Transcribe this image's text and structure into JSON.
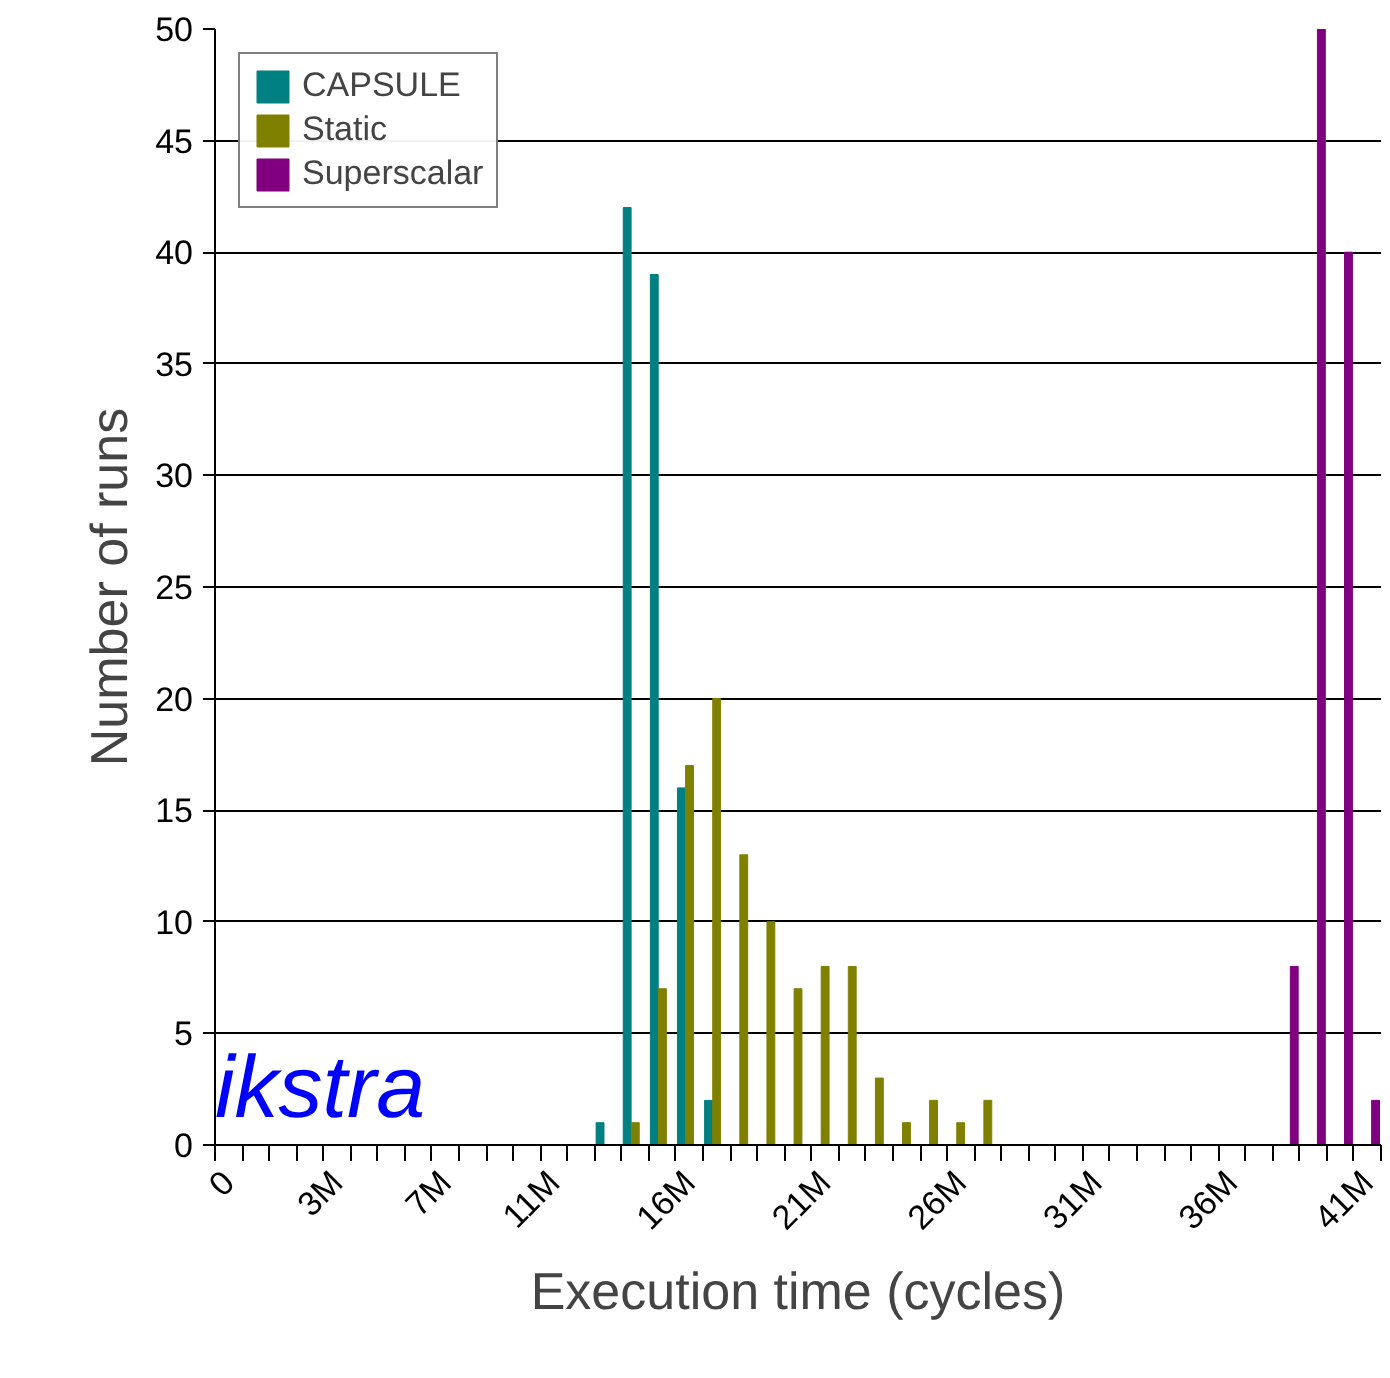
{
  "chart_data": {
    "type": "bar",
    "xlabel": "Execution time (cycles)",
    "ylabel": "Number of runs",
    "categories": [
      "0",
      null,
      null,
      null,
      "3M",
      null,
      null,
      null,
      "7M",
      null,
      null,
      null,
      "11M",
      null,
      null,
      null,
      null,
      "16M",
      null,
      null,
      null,
      null,
      "21M",
      null,
      null,
      null,
      null,
      "26M",
      null,
      null,
      null,
      null,
      "31M",
      null,
      null,
      null,
      null,
      "36M",
      null,
      null,
      null,
      null,
      "41M"
    ],
    "series": [
      {
        "name": "CAPSULE",
        "color": "#008080",
        "values": [
          0,
          0,
          0,
          0,
          0,
          0,
          0,
          0,
          0,
          0,
          0,
          0,
          0,
          0,
          1,
          42,
          39,
          16,
          2,
          0,
          0,
          0,
          0,
          0,
          0,
          0,
          0,
          0,
          0,
          0,
          0,
          0,
          0,
          0,
          0,
          0,
          0,
          0,
          0,
          0,
          0,
          0,
          0
        ]
      },
      {
        "name": "Static",
        "color": "#808000",
        "values": [
          0,
          0,
          0,
          0,
          0,
          0,
          0,
          0,
          0,
          0,
          0,
          0,
          0,
          0,
          0,
          1,
          7,
          17,
          20,
          13,
          10,
          7,
          8,
          8,
          3,
          1,
          2,
          1,
          2,
          0,
          0,
          0,
          0,
          0,
          0,
          0,
          0,
          0,
          0,
          0,
          0,
          0,
          0
        ]
      },
      {
        "name": "Superscalar",
        "color": "#800080",
        "values": [
          0,
          0,
          0,
          0,
          0,
          0,
          0,
          0,
          0,
          0,
          0,
          0,
          0,
          0,
          0,
          0,
          0,
          0,
          0,
          0,
          0,
          0,
          0,
          0,
          0,
          0,
          0,
          0,
          0,
          0,
          0,
          0,
          0,
          0,
          0,
          0,
          0,
          0,
          0,
          8,
          50,
          40,
          2
        ]
      }
    ],
    "ylim": [
      0,
      50
    ],
    "yticks": [
      0,
      5,
      10,
      15,
      20,
      25,
      30,
      35,
      40,
      45,
      50
    ],
    "grid": "y",
    "legend": "top left",
    "annotations": [
      "ikstra"
    ]
  }
}
